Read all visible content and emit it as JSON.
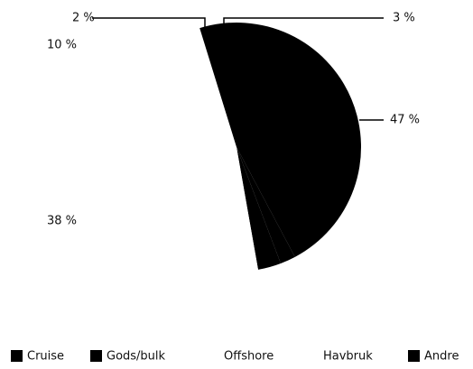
{
  "chart_data": {
    "type": "pie",
    "categories": [
      "Cruise",
      "Gods/bulk",
      "Offshore",
      "Havbruk",
      "Andre"
    ],
    "values": [
      2,
      3,
      38,
      10,
      47
    ],
    "value_labels": [
      "2 %",
      "3 %",
      "38 %",
      "10 %",
      "47 %"
    ],
    "colors": [
      "#000000",
      "#000000",
      "#ffffff",
      "#ffffff",
      "#000000"
    ],
    "legend": "bottom"
  }
}
